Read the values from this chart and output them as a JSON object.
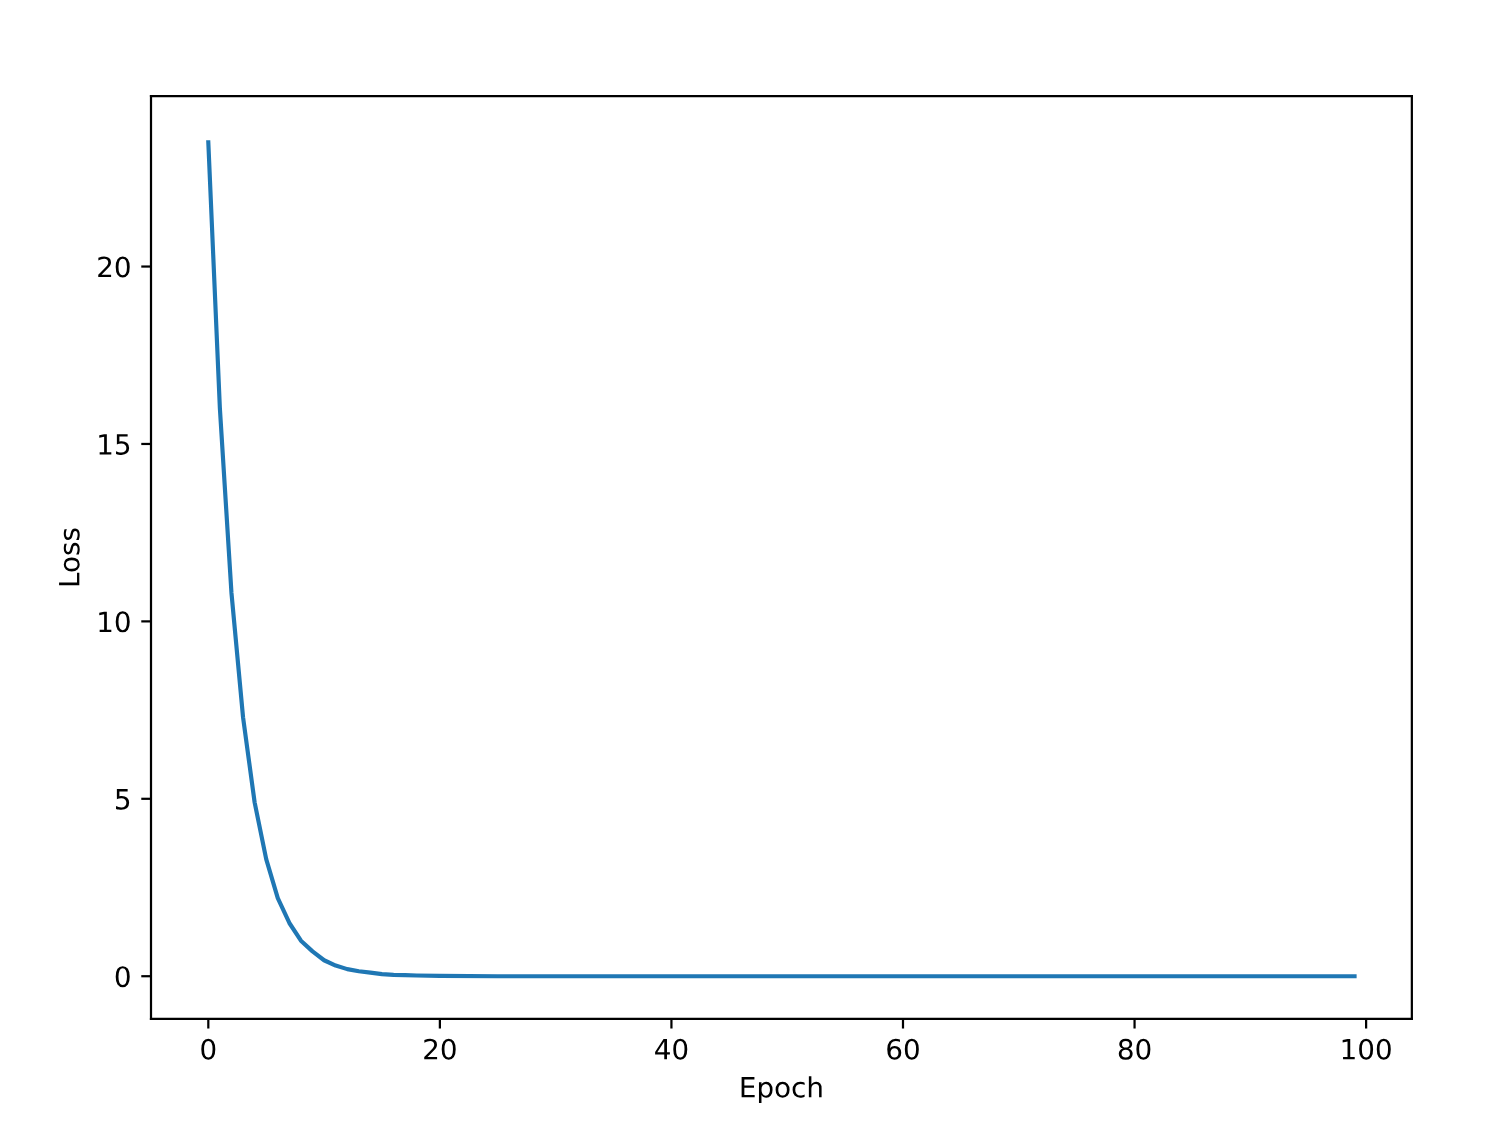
{
  "chart_data": {
    "type": "line",
    "xlabel": "Epoch",
    "ylabel": "Loss",
    "x": [
      0,
      1,
      2,
      3,
      4,
      5,
      6,
      7,
      8,
      9,
      10,
      11,
      12,
      13,
      14,
      15,
      16,
      17,
      18,
      20,
      25,
      30,
      40,
      50,
      60,
      70,
      80,
      90,
      99
    ],
    "series": [
      {
        "color": "#1f77b4",
        "values": [
          23.5,
          16.0,
          10.8,
          7.3,
          4.9,
          3.3,
          2.2,
          1.5,
          1.0,
          0.7,
          0.45,
          0.3,
          0.2,
          0.14,
          0.1,
          0.06,
          0.04,
          0.03,
          0.02,
          0.01,
          0,
          0,
          0,
          0,
          0,
          0,
          0,
          0,
          0
        ]
      }
    ],
    "xlim": [
      -4.95,
      103.95
    ],
    "xticks": [
      0,
      20,
      40,
      60,
      80,
      100
    ],
    "ylim": [
      -1.2,
      24.8
    ],
    "yticks": [
      0,
      5,
      10,
      15,
      20
    ],
    "grid": false,
    "legend": false
  }
}
